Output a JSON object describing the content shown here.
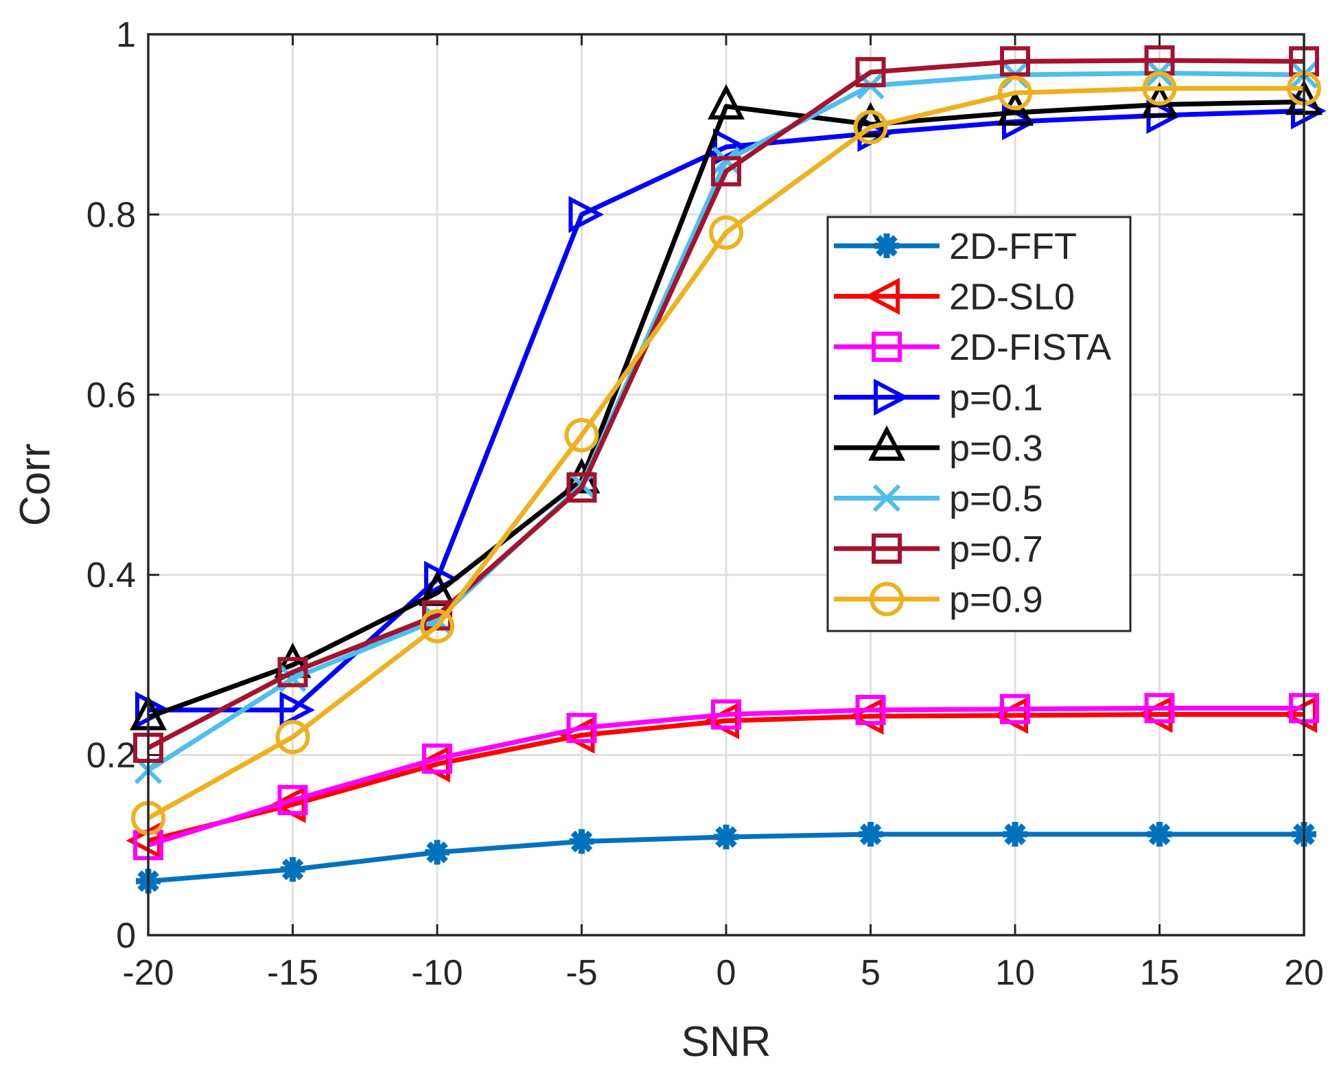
{
  "chart_data": {
    "type": "line",
    "title": "",
    "xlabel": "SNR",
    "ylabel": "Corr",
    "xlim": [
      -20,
      20
    ],
    "ylim": [
      0,
      1
    ],
    "xticks": [
      -20,
      -15,
      -10,
      -5,
      0,
      5,
      10,
      15,
      20
    ],
    "yticks": [
      0,
      0.2,
      0.4,
      0.6,
      0.8,
      1
    ],
    "ytick_labels": [
      "0",
      "0.2",
      "0.4",
      "0.6",
      "0.8",
      "1"
    ],
    "xtick_labels": [
      "-20",
      "-15",
      "-10",
      "-5",
      "0",
      "5",
      "10",
      "15",
      "20"
    ],
    "grid": true,
    "legend_position": "right-center",
    "x": [
      -20,
      -15,
      -10,
      -5,
      0,
      5,
      10,
      15,
      20
    ],
    "series": [
      {
        "name": "2D-FFT",
        "color": "#0072BD",
        "marker": "asterisk",
        "values": [
          0.06,
          0.073,
          0.092,
          0.104,
          0.109,
          0.112,
          0.112,
          0.112,
          0.112
        ]
      },
      {
        "name": "2D-SL0",
        "color": "#FF0000",
        "marker": "triangle-left",
        "values": [
          0.105,
          0.145,
          0.19,
          0.222,
          0.238,
          0.243,
          0.244,
          0.245,
          0.245
        ]
      },
      {
        "name": "2D-FISTA",
        "color": "#FF00FF",
        "marker": "square",
        "values": [
          0.1,
          0.15,
          0.196,
          0.23,
          0.245,
          0.25,
          0.251,
          0.252,
          0.252
        ]
      },
      {
        "name": "p=0.1",
        "color": "#0000FF",
        "marker": "triangle-right",
        "values": [
          0.25,
          0.25,
          0.395,
          0.8,
          0.875,
          0.89,
          0.903,
          0.91,
          0.915
        ]
      },
      {
        "name": "p=0.3",
        "color": "#000000",
        "marker": "triangle-up",
        "values": [
          0.242,
          0.3,
          0.38,
          0.505,
          0.92,
          0.9,
          0.913,
          0.922,
          0.925
        ]
      },
      {
        "name": "p=0.5",
        "color": "#4DBEEE",
        "marker": "x",
        "values": [
          0.183,
          0.285,
          0.35,
          0.5,
          0.86,
          0.943,
          0.955,
          0.957,
          0.955
        ]
      },
      {
        "name": "p=0.7",
        "color": "#A2142F",
        "marker": "square",
        "values": [
          0.208,
          0.292,
          0.355,
          0.497,
          0.848,
          0.958,
          0.97,
          0.971,
          0.97
        ]
      },
      {
        "name": "p=0.9",
        "color": "#EDB120",
        "marker": "circle",
        "values": [
          0.13,
          0.22,
          0.343,
          0.555,
          0.78,
          0.897,
          0.935,
          0.94,
          0.94
        ]
      }
    ]
  }
}
